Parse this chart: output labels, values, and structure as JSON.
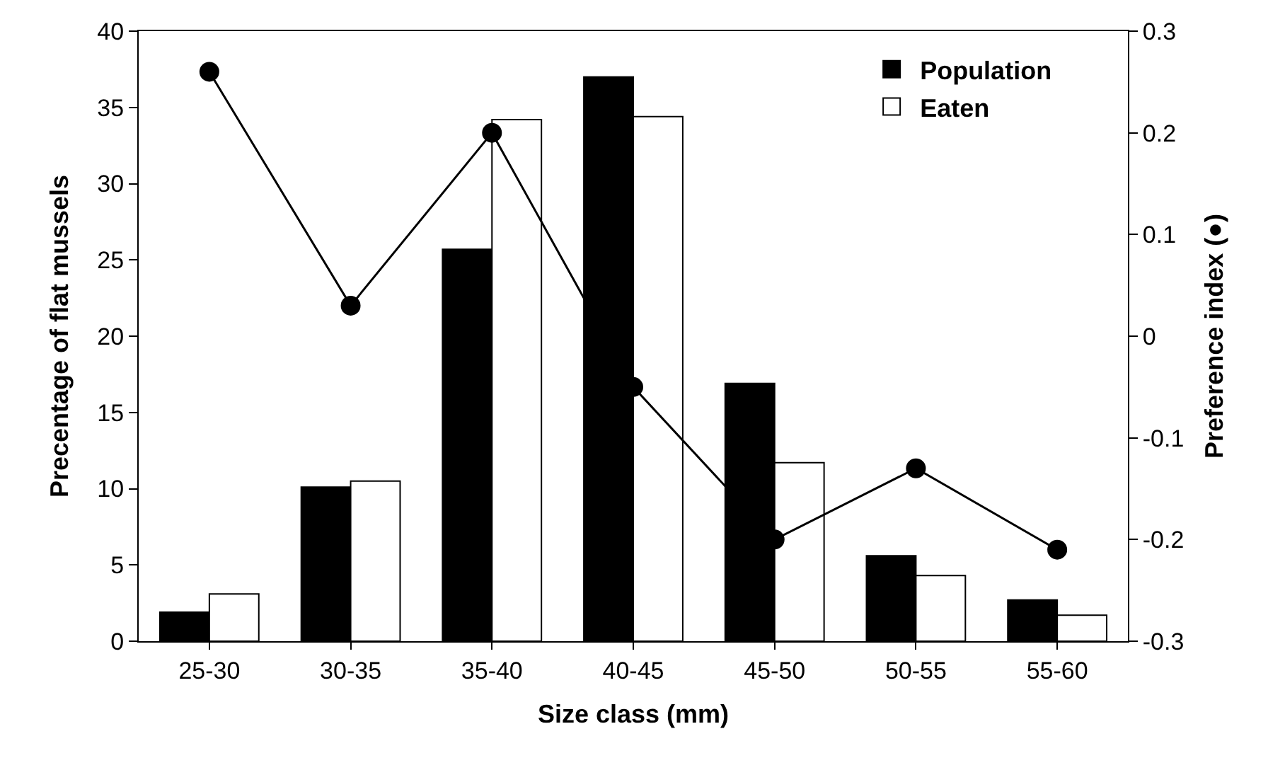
{
  "chart_data": {
    "type": "bar",
    "xlabel": "Size class (mm)",
    "ylabel": "Precentage of flat mussels",
    "y2label": "Preference index (●)",
    "categories": [
      "25-30",
      "30-35",
      "35-40",
      "40-45",
      "45-50",
      "50-55",
      "55-60"
    ],
    "series": [
      {
        "name": "Population",
        "color": "#000000",
        "values": [
          1.9,
          10.1,
          25.7,
          37.0,
          16.9,
          5.6,
          2.7
        ]
      },
      {
        "name": "Eaten",
        "color": "#ffffff",
        "values": [
          3.1,
          10.5,
          34.2,
          34.4,
          11.7,
          4.3,
          1.7
        ]
      },
      {
        "type": "line",
        "axis": "y2",
        "color": "#000000",
        "marker": "circle",
        "line_style": "solid",
        "values": [
          0.26,
          0.03,
          0.2,
          -0.05,
          -0.2,
          -0.13,
          -0.21
        ]
      }
    ],
    "ylim": [
      0,
      40
    ],
    "yticks": [
      0,
      5,
      10,
      15,
      20,
      25,
      30,
      35,
      40
    ],
    "y2lim": [
      -0.3,
      0.3
    ],
    "y2ticks": [
      -0.3,
      -0.2,
      -0.1,
      0,
      0.1,
      0.2,
      0.3
    ],
    "legend": "top right"
  }
}
